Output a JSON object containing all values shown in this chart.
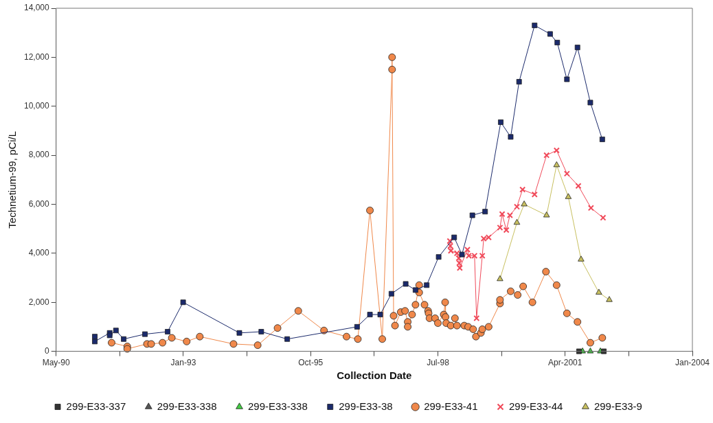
{
  "chart_data": {
    "type": "line",
    "xlabel": "Collection Date",
    "ylabel": "Technetium-99, pCi/L",
    "legend": "bottom",
    "grid": false,
    "line_style": "solid",
    "xlim": [
      "1990-05-07",
      "2004-01-14"
    ],
    "xticks": [
      {
        "value": "1990-05-07",
        "label": "May-90"
      },
      {
        "value": "1991-09-19",
        "label": null
      },
      {
        "value": "1993-01-31",
        "label": "Jan-93"
      },
      {
        "value": "1994-06-15",
        "label": null
      },
      {
        "value": "1995-10-28",
        "label": "Oct-95"
      },
      {
        "value": "1997-03-11",
        "label": null
      },
      {
        "value": "1998-07-24",
        "label": "Jul-98"
      },
      {
        "value": "1999-12-06",
        "label": null
      },
      {
        "value": "2001-04-19",
        "label": "Apr-2001"
      },
      {
        "value": "2002-09-01",
        "label": null
      },
      {
        "value": "2004-01-14",
        "label": "Jan-2004"
      }
    ],
    "ylim": [
      0,
      14000
    ],
    "yticks": [
      {
        "value": 0,
        "label": "0"
      },
      {
        "value": 2000,
        "label": "2,000"
      },
      {
        "value": 4000,
        "label": "4,000"
      },
      {
        "value": 6000,
        "label": "6,000"
      },
      {
        "value": 8000,
        "label": "8,000"
      },
      {
        "value": 10000,
        "label": "10,000"
      },
      {
        "value": 12000,
        "label": "12,000"
      },
      {
        "value": 14000,
        "label": "14,000"
      }
    ],
    "series": [
      {
        "name": "299-E33-337",
        "color": "#333333",
        "marker": "square",
        "x": [
          "2001-08-06",
          "2002-02-17"
        ],
        "values": [
          0,
          0
        ]
      },
      {
        "name": "299-E33-338",
        "color": "#555555",
        "marker": "triangle"
      },
      {
        "name": "299-E33-338",
        "color": "#44cc44",
        "marker": "triangle",
        "x": [
          "2001-09-03",
          "2001-11-03",
          "2002-01-21"
        ],
        "values": [
          0,
          0,
          0
        ]
      },
      {
        "name": "299-E33-38",
        "color": "#1b2a6b",
        "marker": "square",
        "x": [
          "1991-03-07",
          "1991-03-07",
          "1991-07-02",
          "1991-07-02",
          "1991-08-20",
          "1991-10-20",
          "1992-04-04",
          "1992-09-29",
          "1993-01-29",
          "1994-04-16",
          "1994-10-05",
          "1995-04-27",
          "1996-10-27",
          "1997-02-05",
          "1997-04-27",
          "1997-07-24",
          "1997-11-13",
          "1998-01-29",
          "1998-04-27",
          "1998-07-30",
          "1998-11-29",
          "1999-01-29",
          "1999-04-21",
          "1999-07-30",
          "1999-11-30",
          "2000-02-16",
          "2000-04-22",
          "2000-08-22",
          "2000-12-22",
          "2001-02-16",
          "2001-05-03",
          "2001-07-25",
          "2001-11-03",
          "2002-02-05"
        ],
        "values": [
          600,
          400,
          750,
          650,
          850,
          500,
          700,
          800,
          2000,
          750,
          800,
          500,
          1000,
          1500,
          1500,
          2350,
          2750,
          2500,
          2700,
          3850,
          4650,
          3950,
          5550,
          5700,
          9350,
          8750,
          11000,
          13300,
          12950,
          12600,
          11100,
          12400,
          10150,
          8650
        ]
      },
      {
        "name": "299-E33-41",
        "color": "#f0884a",
        "marker": "circle",
        "x": [
          "1991-07-17",
          "1991-11-17",
          "1991-11-17",
          "1992-04-20",
          "1992-05-23",
          "1992-08-20",
          "1992-11-01",
          "1993-02-26",
          "1993-06-09",
          "1994-03-01",
          "1994-09-07",
          "1995-02-10",
          "1995-07-23",
          "1996-02-10",
          "1996-08-05",
          "1996-11-02",
          "1997-02-05",
          "1997-05-13",
          "1997-07-29",
          "1997-07-29",
          "1997-08-10",
          "1997-08-21",
          "1997-10-05",
          "1997-11-08",
          "1997-11-29",
          "1997-11-29",
          "1998-01-02",
          "1998-01-29",
          "1998-02-27",
          "1998-02-27",
          "1998-04-10",
          "1998-05-08",
          "1998-05-12",
          "1998-05-19",
          "1998-07-02",
          "1998-07-24",
          "1998-09-08",
          "1998-09-19",
          "1998-09-22",
          "1998-09-27",
          "1998-11-02",
          "1998-12-05",
          "1998-12-21",
          "1999-02-16",
          "1999-03-19",
          "1999-04-27",
          "1999-05-19",
          "1999-06-27",
          "1999-07-08",
          "1999-08-27",
          "1999-11-24",
          "1999-11-24",
          "2000-02-16",
          "2000-04-11",
          "2000-05-24",
          "2000-08-05",
          "2000-11-19",
          "2001-02-11",
          "2001-05-03",
          "2001-07-25",
          "2001-11-03",
          "2002-02-05"
        ],
        "values": [
          350,
          200,
          100,
          300,
          300,
          350,
          550,
          400,
          600,
          300,
          250,
          950,
          1650,
          850,
          600,
          500,
          5750,
          500,
          11500,
          12000,
          1450,
          1050,
          1600,
          1650,
          1200,
          1000,
          1500,
          1900,
          2700,
          2400,
          1900,
          1650,
          1550,
          1350,
          1350,
          1150,
          1500,
          2000,
          1400,
          1150,
          1050,
          1350,
          1050,
          1050,
          1000,
          900,
          600,
          750,
          900,
          1000,
          1950,
          2100,
          2450,
          2300,
          2650,
          2000,
          3250,
          2700,
          1550,
          1200,
          350,
          550
        ]
      },
      {
        "name": "299-E33-44",
        "color": "#f04a5a",
        "marker": "cross",
        "x": [
          "1998-10-26",
          "1998-10-30",
          "1998-11-03",
          "1998-12-21",
          "1999-01-04",
          "1999-01-08",
          "1999-01-12",
          "1999-03-13",
          "1999-03-24",
          "1999-05-08",
          "1999-05-24",
          "1999-07-08",
          "1999-07-19",
          "1999-08-27",
          "1999-11-24",
          "1999-12-11",
          "2000-01-13",
          "2000-02-10",
          "2000-04-05",
          "2000-05-19",
          "2000-08-22",
          "2000-11-24",
          "2001-02-11",
          "2001-05-03",
          "2001-08-01",
          "2001-11-08",
          "2002-02-11"
        ],
        "values": [
          4500,
          4300,
          4100,
          4000,
          3800,
          3600,
          3400,
          4150,
          3900,
          3900,
          1350,
          3900,
          4600,
          4650,
          5050,
          5600,
          4950,
          5550,
          5900,
          6600,
          6400,
          8000,
          8200,
          7250,
          6750,
          5850,
          5450
        ]
      },
      {
        "name": "299-E33-9",
        "color": "#c8c060",
        "marker": "triangle",
        "x": [
          "1999-11-24",
          "2000-04-05",
          "2000-06-01",
          "2000-11-24",
          "2001-02-11",
          "2001-05-14",
          "2001-08-22",
          "2002-01-09",
          "2002-04-01"
        ],
        "values": [
          2950,
          5250,
          6000,
          5550,
          7600,
          6300,
          3750,
          2400,
          2100
        ]
      }
    ]
  }
}
